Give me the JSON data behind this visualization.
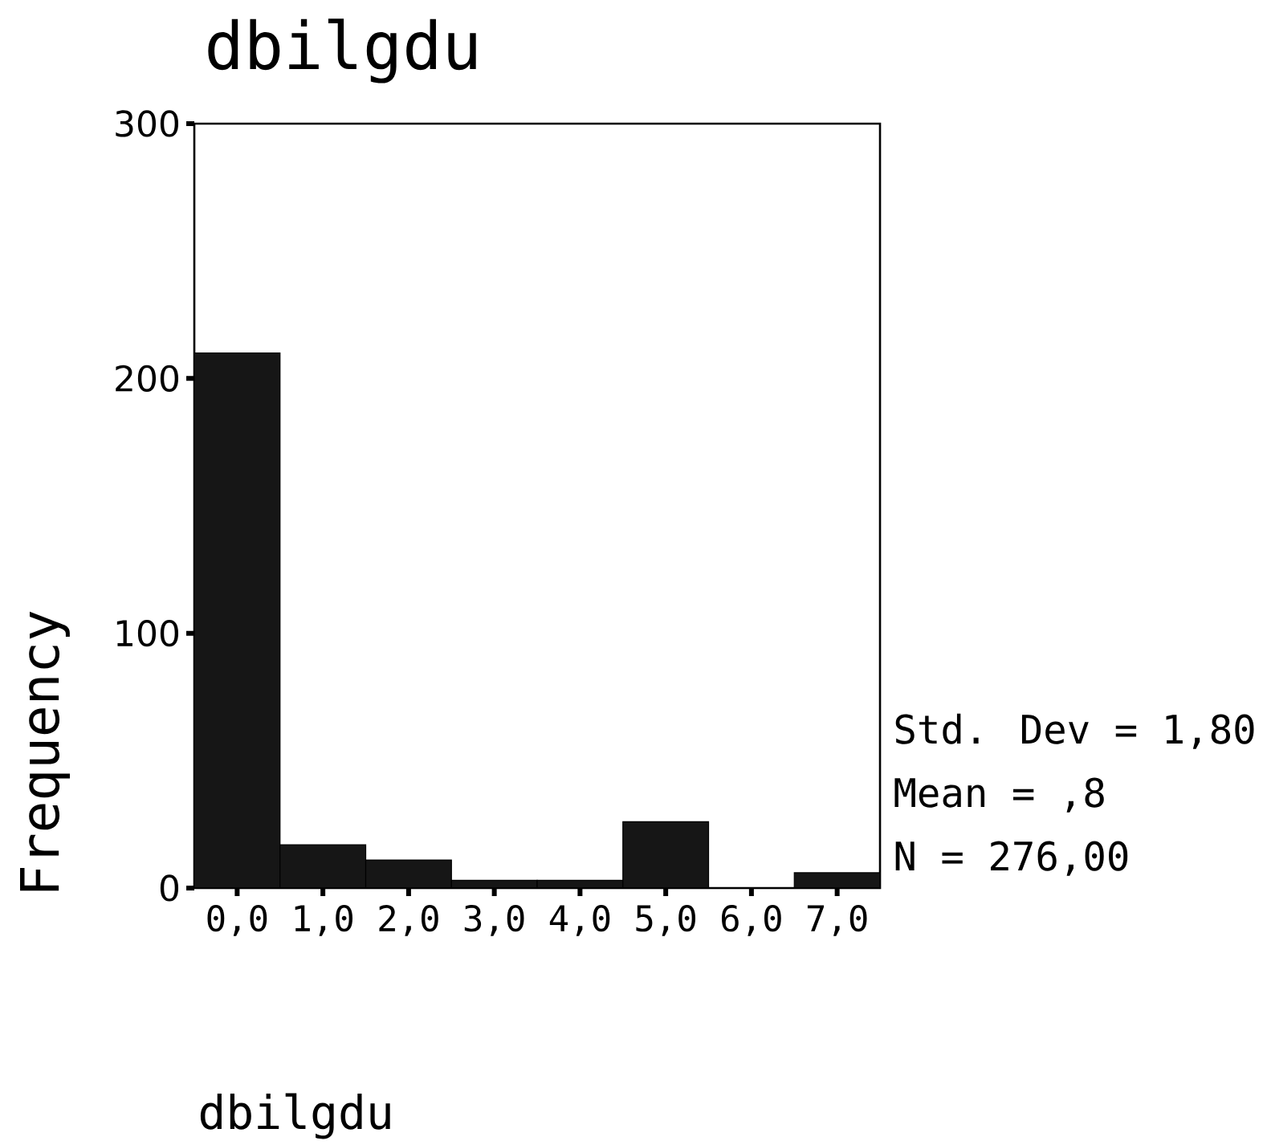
{
  "chart_data": {
    "type": "histogram",
    "title": "dbilgdu",
    "xlabel": "dbilgdu",
    "ylabel": "Frequency",
    "bins": [
      -0.5,
      0.5,
      1.5,
      2.5,
      3.5,
      4.5,
      5.5,
      6.5,
      7.5
    ],
    "values": [
      210,
      17,
      11,
      3,
      3,
      26,
      0,
      6
    ],
    "color": "#161616",
    "xlim": [
      -0.5,
      7.5
    ],
    "ylim": [
      0,
      300
    ],
    "xticks": [
      {
        "value": 0,
        "label": "0,0"
      },
      {
        "value": 1,
        "label": "1,0"
      },
      {
        "value": 2,
        "label": "2,0"
      },
      {
        "value": 3,
        "label": "3,0"
      },
      {
        "value": 4,
        "label": "4,0"
      },
      {
        "value": 5,
        "label": "5,0"
      },
      {
        "value": 6,
        "label": "6,0"
      },
      {
        "value": 7,
        "label": "7,0"
      }
    ],
    "yticks": [
      0,
      100,
      200,
      300
    ],
    "annotations": [
      "Std. Dev = 1,80",
      "Mean = ,8",
      "N = 276,00"
    ]
  }
}
